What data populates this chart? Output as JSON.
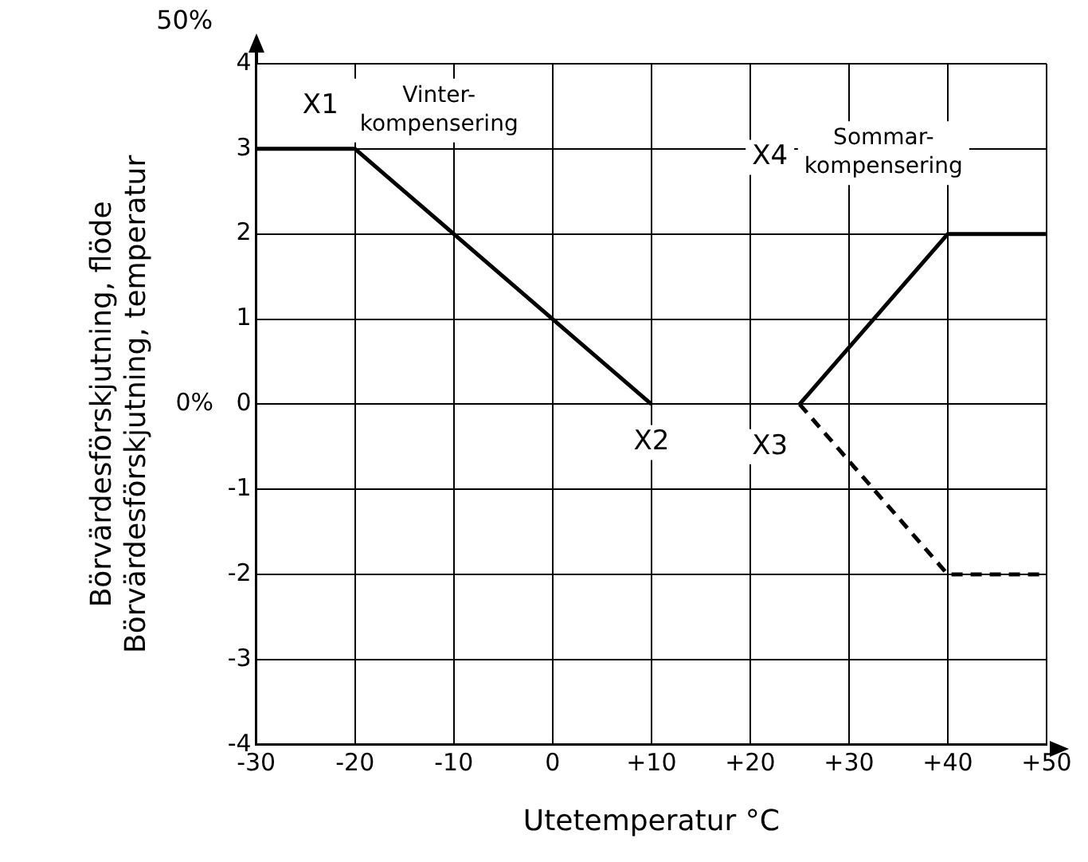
{
  "chart_data": {
    "type": "line",
    "xlabel": "Utetemperatur °C",
    "ylabel": "Börvärdesförskjutning, flöde\nBörvärdesförskjutning, temperatur",
    "series": [
      {
        "color": "#000000",
        "x": [
          -30,
          -20,
          10
        ],
        "values": [
          3,
          3,
          0
        ],
        "line_style": "solid"
      },
      {
        "color": "#000000",
        "x": [
          25,
          40,
          50
        ],
        "values": [
          0,
          2,
          2
        ],
        "line_style": "solid"
      },
      {
        "color": "#000000",
        "x": [
          25,
          40,
          50
        ],
        "values": [
          0,
          -2,
          -2
        ],
        "line_style": "dashed"
      }
    ],
    "xlim": [
      -30,
      50
    ],
    "xticks": [
      -30,
      -20,
      -10,
      0,
      {
        "value": 10,
        "label": "+10"
      },
      {
        "value": 20,
        "label": "+20"
      },
      {
        "value": 30,
        "label": "+30"
      },
      {
        "value": 40,
        "label": "+40"
      },
      {
        "value": 50,
        "label": "+50"
      }
    ],
    "ylim": [
      -4,
      4
    ],
    "yticks": [
      -4,
      -3,
      -2,
      -1,
      {
        "value": 0,
        "label": "0%   0"
      },
      1,
      2,
      3,
      4
    ],
    "grid": true,
    "legend": false,
    "marker": "none",
    "annotations": [
      "50%",
      "X1",
      "Vinter-\nkompensering",
      "X2",
      "X3",
      "X4",
      "Sommar-\nkompensering"
    ]
  }
}
